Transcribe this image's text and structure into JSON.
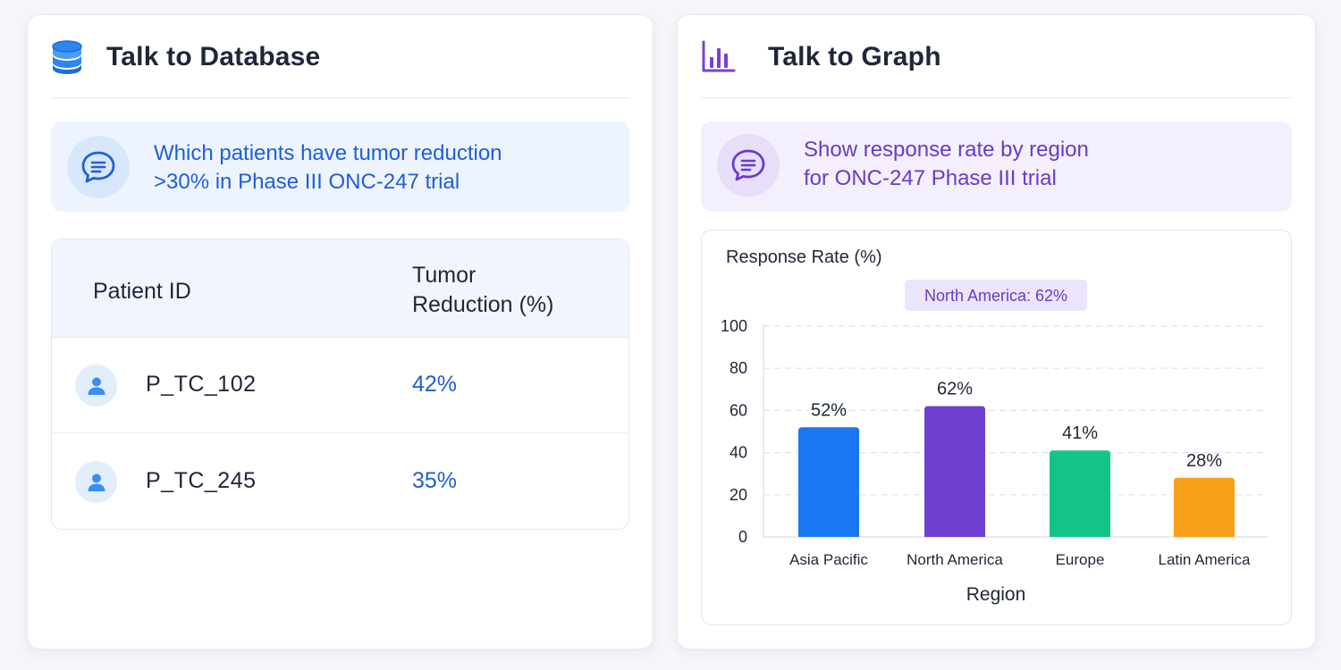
{
  "database_panel": {
    "title": "Talk to Database",
    "icon": "database-icon",
    "query": {
      "line1": "Which patients have tumor reduction",
      "line2": ">30% in Phase III ONC-247 trial"
    },
    "table": {
      "columns": [
        "Patient ID",
        "Tumor",
        "Reduction (%)"
      ],
      "rows": [
        {
          "patient_id": "P_TC_102",
          "tumor_reduction": "42%"
        },
        {
          "patient_id": "P_TC_245",
          "tumor_reduction": "35%"
        }
      ]
    }
  },
  "graph_panel": {
    "title": "Talk to Graph",
    "icon": "bar-chart-icon",
    "query": {
      "line1": "Show response rate by region",
      "line2": "for ONC-247 Phase III trial"
    }
  },
  "colors": {
    "blue_accent": "#1f5fd6",
    "purple_accent": "#6a3bc7",
    "bar_asia_pacific": "#1877f2",
    "bar_north_america": "#6f3fd0",
    "bar_europe": "#12c48a",
    "bar_latin_america": "#f9a01b"
  },
  "chart_data": {
    "type": "bar",
    "title": "",
    "ylabel": "Response Rate (%)",
    "xlabel": "Region",
    "categories": [
      "Asia Pacific",
      "North America",
      "Europe",
      "Latin America"
    ],
    "values": [
      52,
      62,
      41,
      28
    ],
    "value_labels": [
      "52%",
      "62%",
      "41%",
      "28%"
    ],
    "ylim": [
      0,
      100
    ],
    "yticks": [
      0,
      20,
      40,
      60,
      80,
      100
    ],
    "grid": true,
    "highlight_annotation": "North America: 62%"
  }
}
